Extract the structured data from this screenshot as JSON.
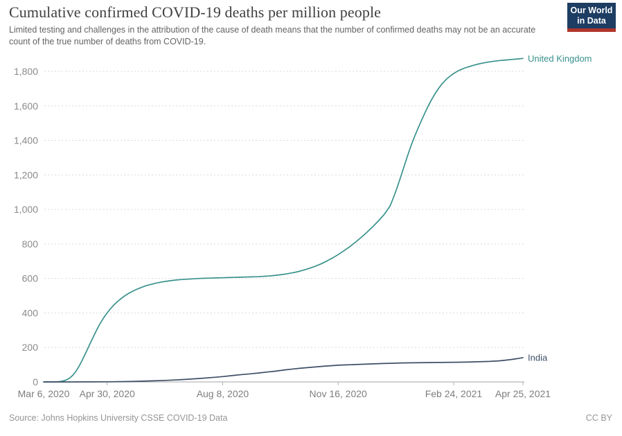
{
  "header": {
    "title": "Cumulative confirmed COVID-19 deaths per million people",
    "subtitle": "Limited testing and challenges in the attribution of the cause of death means that the number of confirmed deaths may not be an accurate count of the true number of deaths from COVID-19.",
    "logo": {
      "line1": "Our World",
      "line2": "in Data",
      "bg_color": "#1d3d63",
      "accent_color": "#b0352b"
    }
  },
  "footer": {
    "source": "Source: Johns Hopkins University CSSE COVID-19 Data",
    "license": "CC BY"
  },
  "colors": {
    "grid": "#d9d9d9",
    "axis": "#a3a3a3",
    "tick": "#b5b5b5",
    "y_tick_label": "#8a8a8a",
    "x_tick_label": "#7d7d7d"
  },
  "chart_data": {
    "type": "line",
    "title": "Cumulative confirmed COVID-19 deaths per million people",
    "xlabel": "",
    "ylabel": "",
    "grid": "horizontal dotted",
    "legend_position": "end-of-line labels",
    "x_axis": {
      "unit": "days since Mar 6, 2020",
      "xlim": [
        0,
        415
      ],
      "ticks": [
        {
          "x": 0,
          "label": "Mar 6, 2020"
        },
        {
          "x": 55,
          "label": "Apr 30, 2020"
        },
        {
          "x": 155,
          "label": "Aug 8, 2020"
        },
        {
          "x": 255,
          "label": "Nov 16, 2020"
        },
        {
          "x": 355,
          "label": "Feb 24, 2021"
        },
        {
          "x": 415,
          "label": "Apr 25, 2021"
        }
      ]
    },
    "y_axis": {
      "ylim": [
        0,
        1900
      ],
      "ticks": [
        0,
        200,
        400,
        600,
        800,
        1000,
        1200,
        1400,
        1600,
        1800
      ]
    },
    "series": [
      {
        "name": "United Kingdom",
        "color": "#38918c",
        "points": [
          [
            0,
            0
          ],
          [
            7,
            0.3
          ],
          [
            12,
            1
          ],
          [
            16,
            4
          ],
          [
            19,
            10
          ],
          [
            22,
            20
          ],
          [
            25,
            37
          ],
          [
            28,
            62
          ],
          [
            31,
            95
          ],
          [
            34,
            134
          ],
          [
            37,
            176
          ],
          [
            40,
            219
          ],
          [
            43,
            261
          ],
          [
            46,
            302
          ],
          [
            49,
            340
          ],
          [
            52,
            372
          ],
          [
            55,
            400
          ],
          [
            58,
            425
          ],
          [
            61,
            447
          ],
          [
            64,
            466
          ],
          [
            67,
            483
          ],
          [
            70,
            498
          ],
          [
            73,
            511
          ],
          [
            76,
            522
          ],
          [
            79,
            532
          ],
          [
            82,
            541
          ],
          [
            85,
            549
          ],
          [
            88,
            556
          ],
          [
            91,
            562
          ],
          [
            94,
            567
          ],
          [
            97,
            572
          ],
          [
            100,
            576
          ],
          [
            105,
            582
          ],
          [
            110,
            587
          ],
          [
            115,
            591
          ],
          [
            120,
            594
          ],
          [
            125,
            596
          ],
          [
            130,
            598
          ],
          [
            135,
            600
          ],
          [
            140,
            601
          ],
          [
            145,
            602
          ],
          [
            150,
            603
          ],
          [
            155,
            604
          ],
          [
            160,
            605
          ],
          [
            165,
            606
          ],
          [
            170,
            607
          ],
          [
            175,
            608
          ],
          [
            180,
            609
          ],
          [
            185,
            610
          ],
          [
            190,
            612
          ],
          [
            195,
            614
          ],
          [
            200,
            617
          ],
          [
            205,
            621
          ],
          [
            210,
            626
          ],
          [
            215,
            632
          ],
          [
            220,
            639
          ],
          [
            225,
            648
          ],
          [
            230,
            658
          ],
          [
            235,
            670
          ],
          [
            240,
            684
          ],
          [
            245,
            700
          ],
          [
            250,
            718
          ],
          [
            255,
            738
          ],
          [
            260,
            760
          ],
          [
            265,
            784
          ],
          [
            270,
            810
          ],
          [
            275,
            838
          ],
          [
            280,
            868
          ],
          [
            285,
            900
          ],
          [
            290,
            934
          ],
          [
            295,
            972
          ],
          [
            300,
            1020
          ],
          [
            303,
            1070
          ],
          [
            306,
            1125
          ],
          [
            309,
            1185
          ],
          [
            312,
            1248
          ],
          [
            315,
            1310
          ],
          [
            318,
            1368
          ],
          [
            321,
            1420
          ],
          [
            324,
            1468
          ],
          [
            327,
            1514
          ],
          [
            330,
            1558
          ],
          [
            333,
            1600
          ],
          [
            336,
            1638
          ],
          [
            339,
            1672
          ],
          [
            342,
            1702
          ],
          [
            345,
            1728
          ],
          [
            348,
            1750
          ],
          [
            351,
            1768
          ],
          [
            354,
            1783
          ],
          [
            357,
            1796
          ],
          [
            360,
            1807
          ],
          [
            364,
            1818
          ],
          [
            368,
            1827
          ],
          [
            372,
            1835
          ],
          [
            376,
            1842
          ],
          [
            380,
            1848
          ],
          [
            385,
            1854
          ],
          [
            390,
            1859
          ],
          [
            395,
            1863
          ],
          [
            400,
            1866
          ],
          [
            405,
            1869
          ],
          [
            410,
            1872
          ],
          [
            415,
            1875
          ]
        ]
      },
      {
        "name": "India",
        "color": "#3d4e66",
        "points": [
          [
            0,
            0
          ],
          [
            20,
            0.1
          ],
          [
            40,
            0.4
          ],
          [
            55,
            0.9
          ],
          [
            65,
            1.5
          ],
          [
            75,
            2.6
          ],
          [
            85,
            4.3
          ],
          [
            95,
            6.5
          ],
          [
            105,
            9
          ],
          [
            117,
            12.6
          ],
          [
            125,
            15.5
          ],
          [
            135,
            20
          ],
          [
            148,
            27
          ],
          [
            155,
            31
          ],
          [
            165,
            38
          ],
          [
            172,
            43
          ],
          [
            179,
            47
          ],
          [
            186,
            52
          ],
          [
            193,
            57
          ],
          [
            200,
            62
          ],
          [
            209,
            70
          ],
          [
            216,
            75
          ],
          [
            223,
            80
          ],
          [
            230,
            84
          ],
          [
            237,
            88
          ],
          [
            244,
            92
          ],
          [
            251,
            95
          ],
          [
            255,
            97
          ],
          [
            262,
            99
          ],
          [
            270,
            101
          ],
          [
            278,
            103
          ],
          [
            286,
            105
          ],
          [
            294,
            107
          ],
          [
            301,
            108
          ],
          [
            310,
            110
          ],
          [
            320,
            111
          ],
          [
            332,
            112
          ],
          [
            344,
            113
          ],
          [
            356,
            114
          ],
          [
            366,
            115
          ],
          [
            376,
            117
          ],
          [
            386,
            119
          ],
          [
            394,
            122
          ],
          [
            400,
            126
          ],
          [
            405,
            130
          ],
          [
            410,
            135
          ],
          [
            415,
            141
          ]
        ]
      }
    ]
  }
}
